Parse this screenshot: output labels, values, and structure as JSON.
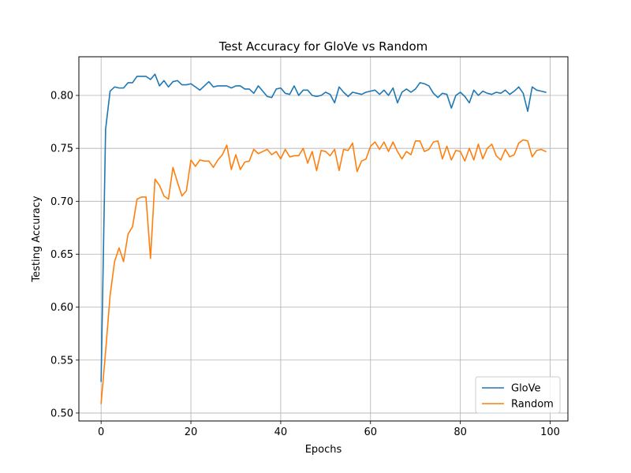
{
  "chart_data": {
    "type": "line",
    "title": "Test Accuracy for GloVe vs Random",
    "xlabel": "Epochs",
    "ylabel": "Testing Accuracy",
    "xlim": [
      -4.95,
      103.95
    ],
    "ylim": [
      0.4925,
      0.8365
    ],
    "xticks": [
      0,
      20,
      40,
      60,
      80,
      100
    ],
    "yticks": [
      0.5,
      0.55,
      0.6,
      0.65,
      0.7,
      0.75,
      0.8
    ],
    "ytick_labels": [
      "0.50",
      "0.55",
      "0.60",
      "0.65",
      "0.70",
      "0.75",
      "0.80"
    ],
    "grid": true,
    "legend_position": "lower-right",
    "x": [
      0,
      1,
      2,
      3,
      4,
      5,
      6,
      7,
      8,
      9,
      10,
      11,
      12,
      13,
      14,
      15,
      16,
      17,
      18,
      19,
      20,
      21,
      22,
      23,
      24,
      25,
      26,
      27,
      28,
      29,
      30,
      31,
      32,
      33,
      34,
      35,
      36,
      37,
      38,
      39,
      40,
      41,
      42,
      43,
      44,
      45,
      46,
      47,
      48,
      49,
      50,
      51,
      52,
      53,
      54,
      55,
      56,
      57,
      58,
      59,
      60,
      61,
      62,
      63,
      64,
      65,
      66,
      67,
      68,
      69,
      70,
      71,
      72,
      73,
      74,
      75,
      76,
      77,
      78,
      79,
      80,
      81,
      82,
      83,
      84,
      85,
      86,
      87,
      88,
      89,
      90,
      91,
      92,
      93,
      94,
      95,
      96,
      97,
      98,
      99
    ],
    "series": [
      {
        "name": "GloVe",
        "color": "#1f77b4",
        "values": [
          0.53,
          0.768,
          0.804,
          0.808,
          0.807,
          0.807,
          0.812,
          0.812,
          0.818,
          0.818,
          0.818,
          0.815,
          0.82,
          0.809,
          0.814,
          0.808,
          0.813,
          0.814,
          0.81,
          0.81,
          0.811,
          0.808,
          0.805,
          0.809,
          0.813,
          0.808,
          0.809,
          0.809,
          0.809,
          0.807,
          0.809,
          0.809,
          0.806,
          0.806,
          0.802,
          0.809,
          0.804,
          0.799,
          0.798,
          0.806,
          0.807,
          0.802,
          0.801,
          0.809,
          0.8,
          0.805,
          0.805,
          0.8,
          0.799,
          0.8,
          0.803,
          0.801,
          0.793,
          0.808,
          0.803,
          0.799,
          0.803,
          0.802,
          0.801,
          0.803,
          0.804,
          0.805,
          0.801,
          0.805,
          0.8,
          0.807,
          0.793,
          0.803,
          0.806,
          0.803,
          0.806,
          0.812,
          0.811,
          0.809,
          0.802,
          0.798,
          0.802,
          0.801,
          0.788,
          0.8,
          0.803,
          0.799,
          0.793,
          0.805,
          0.8,
          0.804,
          0.802,
          0.801,
          0.803,
          0.802,
          0.805,
          0.801,
          0.804,
          0.808,
          0.802,
          0.785,
          0.808,
          0.805,
          0.804,
          0.803
        ]
      },
      {
        "name": "Random",
        "color": "#ff7f0e",
        "values": [
          0.509,
          0.558,
          0.611,
          0.643,
          0.656,
          0.643,
          0.669,
          0.676,
          0.702,
          0.704,
          0.704,
          0.646,
          0.721,
          0.715,
          0.705,
          0.702,
          0.732,
          0.718,
          0.705,
          0.71,
          0.739,
          0.733,
          0.739,
          0.738,
          0.738,
          0.732,
          0.739,
          0.744,
          0.753,
          0.73,
          0.744,
          0.73,
          0.737,
          0.738,
          0.749,
          0.745,
          0.747,
          0.749,
          0.744,
          0.747,
          0.74,
          0.749,
          0.742,
          0.743,
          0.743,
          0.75,
          0.736,
          0.747,
          0.729,
          0.748,
          0.747,
          0.743,
          0.749,
          0.729,
          0.749,
          0.748,
          0.755,
          0.728,
          0.738,
          0.74,
          0.752,
          0.756,
          0.749,
          0.756,
          0.747,
          0.756,
          0.747,
          0.74,
          0.747,
          0.744,
          0.757,
          0.757,
          0.747,
          0.749,
          0.756,
          0.757,
          0.74,
          0.752,
          0.739,
          0.748,
          0.747,
          0.738,
          0.75,
          0.739,
          0.754,
          0.74,
          0.75,
          0.754,
          0.743,
          0.739,
          0.749,
          0.742,
          0.744,
          0.755,
          0.758,
          0.757,
          0.742,
          0.748,
          0.749,
          0.747
        ]
      }
    ]
  }
}
